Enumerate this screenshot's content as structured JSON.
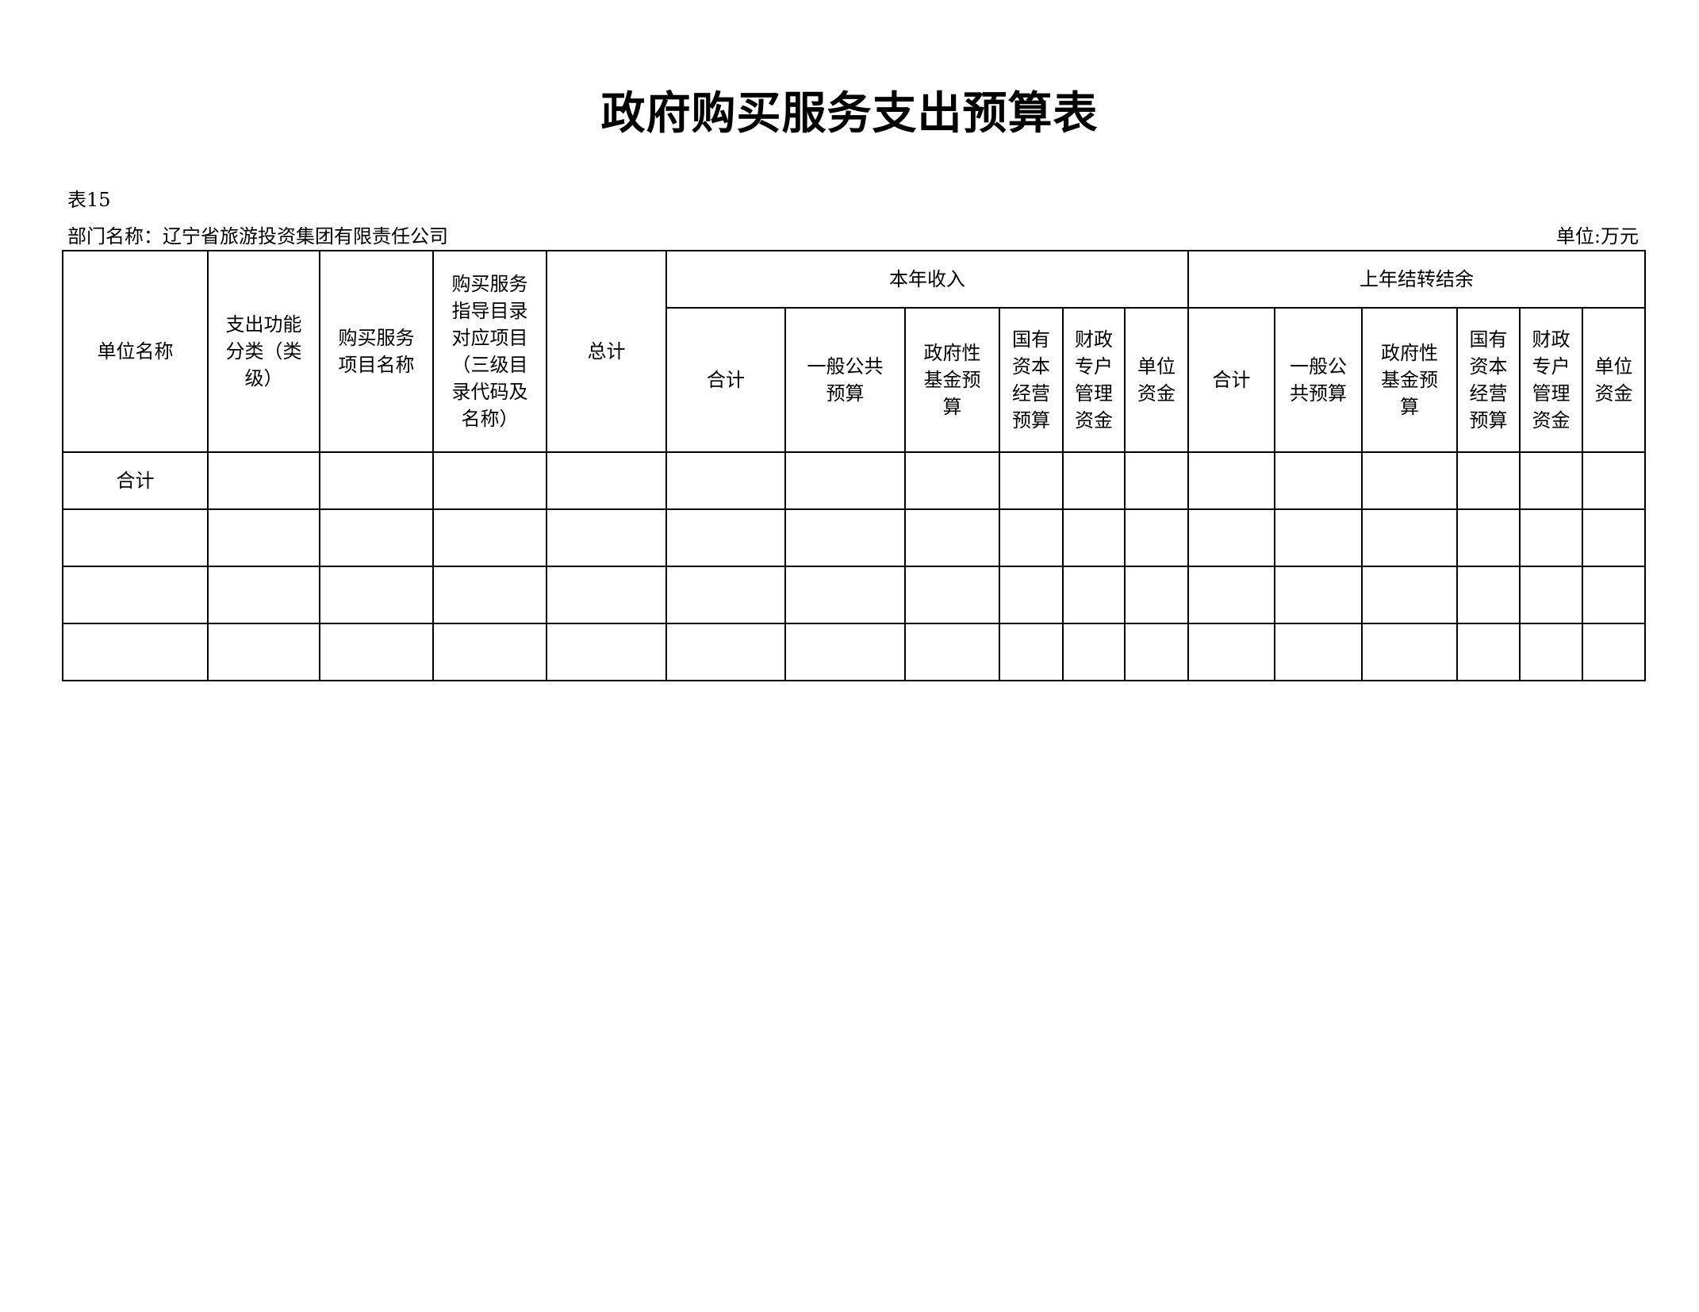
{
  "title": "政府购买服务支出预算表",
  "table_no": "表15",
  "department": "部门名称：辽宁省旅游投资集团有限责任公司",
  "unit": "单位:万元",
  "headers": {
    "unit_name": "单位名称",
    "function_class": "支出功能\n分类（类\n级）",
    "project_name": "购买服务\n项目名称",
    "catalog": "购买服务\n指导目录\n对应项目\n（三级目\n录代码及\n名称）",
    "grand_total": "总计",
    "current_year": "本年收入",
    "carryover": "上年结转结余",
    "current_sub": [
      "合计",
      "一般公共\n预算",
      "政府性\n基金预\n算",
      "国有\n资本\n经营\n预算",
      "财政\n专户\n管理\n资金",
      "单位\n资金"
    ],
    "carryover_sub": [
      "合计",
      "一般公\n共预算",
      "政府性\n基金预\n算",
      "国有\n资本\n经营\n预算",
      "财政\n专户\n管理\n资金",
      "单位\n资金"
    ]
  },
  "rows": [
    {
      "label": "合计"
    },
    {
      "label": ""
    },
    {
      "label": ""
    },
    {
      "label": ""
    }
  ]
}
